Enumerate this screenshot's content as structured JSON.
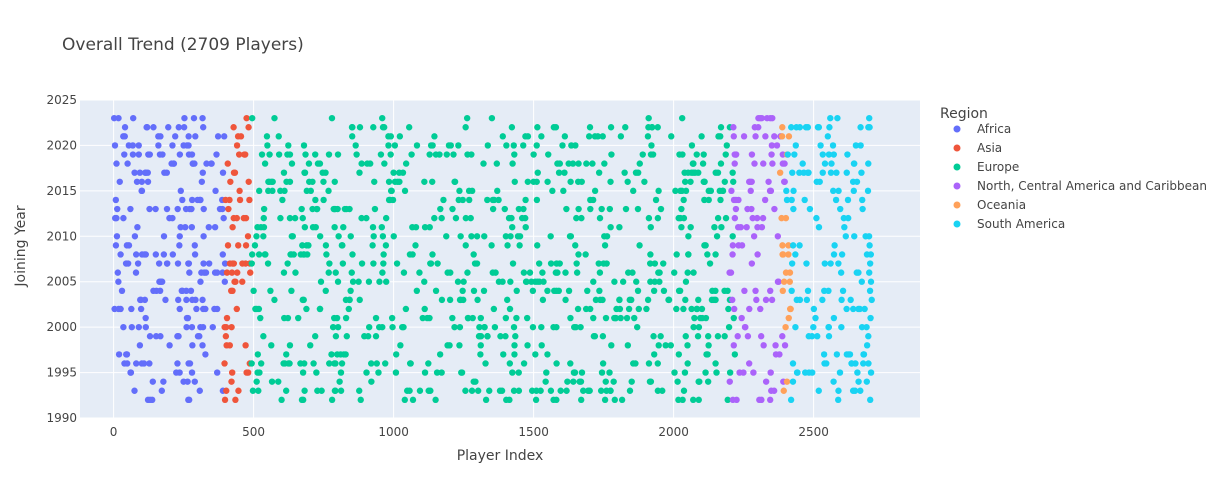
{
  "chart_data": {
    "type": "scatter",
    "title": "Overall Trend (2709 Players)",
    "xlabel": "Player Index",
    "ylabel": "Joining Year",
    "xlim": [
      -120,
      2880
    ],
    "ylim": [
      1990,
      2025
    ],
    "x_ticks": [
      0,
      500,
      1000,
      1500,
      2000,
      2500
    ],
    "y_ticks": [
      1990,
      1995,
      2000,
      2005,
      2010,
      2015,
      2020,
      2025
    ],
    "grid": true,
    "legend_title": "Region",
    "legend_position": "right",
    "series": [
      {
        "name": "Africa",
        "color": "#636efa",
        "x_range": [
          0,
          400
        ],
        "points": [
          [
            2,
            2023
          ],
          [
            5,
            2020
          ],
          [
            8,
            2014
          ],
          [
            12,
            2010
          ],
          [
            15,
            2006
          ],
          [
            18,
            2002
          ],
          [
            22,
            2016
          ],
          [
            25,
            2008
          ],
          [
            30,
            2004
          ],
          [
            35,
            2012
          ],
          [
            40,
            2021
          ],
          [
            45,
            1997
          ],
          [
            50,
            2018
          ],
          [
            55,
            2009
          ],
          [
            60,
            2013
          ],
          [
            65,
            2000
          ],
          [
            70,
            2023
          ],
          [
            75,
            2017
          ],
          [
            80,
            2006
          ],
          [
            85,
            2011
          ],
          [
            90,
            2019
          ],
          [
            95,
            2003
          ],
          [
            100,
            2015
          ],
          [
            110,
            2008
          ],
          [
            120,
            2022
          ],
          [
            130,
            1999
          ],
          [
            140,
            1994
          ],
          [
            150,
            2013
          ],
          [
            160,
            2020
          ],
          [
            170,
            2005
          ],
          [
            180,
            2010
          ],
          [
            190,
            2017
          ],
          [
            200,
            1998
          ],
          [
            210,
            2012
          ],
          [
            220,
            2021
          ],
          [
            230,
            2007
          ],
          [
            240,
            2015
          ],
          [
            250,
            1994
          ],
          [
            260,
            2003
          ],
          [
            270,
            1992
          ],
          [
            280,
            2019
          ],
          [
            290,
            2009
          ],
          [
            300,
            2014
          ],
          [
            310,
            2000
          ],
          [
            320,
            2022
          ],
          [
            330,
            2006
          ],
          [
            340,
            2011
          ],
          [
            350,
            2018
          ],
          [
            360,
            2002
          ],
          [
            370,
            1995
          ],
          [
            380,
            2013
          ],
          [
            390,
            2008
          ],
          [
            395,
            2021
          ]
        ]
      },
      {
        "name": "Asia",
        "color": "#ef553b",
        "x_range": [
          395,
          490
        ],
        "points": [
          [
            398,
            1992
          ],
          [
            402,
            2000
          ],
          [
            405,
            2006
          ],
          [
            410,
            2013
          ],
          [
            415,
            1998
          ],
          [
            420,
            2004
          ],
          [
            425,
            2011
          ],
          [
            430,
            2017
          ],
          [
            435,
            1992
          ],
          [
            440,
            2002
          ],
          [
            445,
            2009
          ],
          [
            450,
            2015
          ],
          [
            455,
            2021
          ],
          [
            460,
            2007
          ],
          [
            465,
            2012
          ],
          [
            470,
            2019
          ],
          [
            475,
            2023
          ],
          [
            480,
            2010
          ],
          [
            485,
            2014
          ],
          [
            488,
            2006
          ]
        ]
      },
      {
        "name": "Europe",
        "color": "#00cc96",
        "x_range": [
          490,
          2220
        ],
        "points": [
          [
            495,
            2023
          ],
          [
            520,
            2015
          ],
          [
            560,
            2004
          ],
          [
            600,
            1992
          ],
          [
            640,
            2010
          ],
          [
            680,
            2020
          ],
          [
            720,
            1999
          ],
          [
            760,
            2008
          ],
          [
            800,
            2013
          ],
          [
            840,
            2002
          ],
          [
            880,
            2022
          ],
          [
            920,
            1996
          ],
          [
            960,
            2006
          ],
          [
            1000,
            2017
          ],
          [
            1040,
            1992
          ],
          [
            1080,
            2011
          ],
          [
            1120,
            2001
          ],
          [
            1150,
            1992
          ],
          [
            1190,
            2019
          ],
          [
            1230,
            2005
          ],
          [
            1270,
            2014
          ],
          [
            1310,
            1997
          ],
          [
            1350,
            2009
          ],
          [
            1390,
            2021
          ],
          [
            1430,
            2000
          ],
          [
            1470,
            2012
          ],
          [
            1510,
            1993
          ],
          [
            1550,
            2016
          ],
          [
            1590,
            2004
          ],
          [
            1630,
            2010
          ],
          [
            1670,
            1992
          ],
          [
            1710,
            2018
          ],
          [
            1750,
            2007
          ],
          [
            1790,
            1992
          ],
          [
            1830,
            2013
          ],
          [
            1870,
            2000
          ],
          [
            1910,
            2022
          ],
          [
            1950,
            2006
          ],
          [
            1990,
            1998
          ],
          [
            2030,
            2015
          ],
          [
            2070,
            1992
          ],
          [
            2110,
            2009
          ],
          [
            2150,
            2003
          ],
          [
            2190,
            2020
          ],
          [
            2215,
            2001
          ]
        ]
      },
      {
        "name": "North, Central America and Caribbean",
        "color": "#ab63fa",
        "x_range": [
          2200,
          2400
        ],
        "points": [
          [
            2205,
            2006
          ],
          [
            2215,
            2021
          ],
          [
            2225,
            1992
          ],
          [
            2240,
            2011
          ],
          [
            2255,
            2000
          ],
          [
            2270,
            2016
          ],
          [
            2285,
            1995
          ],
          [
            2300,
            2008
          ],
          [
            2315,
            2023
          ],
          [
            2330,
            2003
          ],
          [
            2345,
            1992
          ],
          [
            2360,
            2013
          ],
          [
            2375,
            2005
          ],
          [
            2390,
            2019
          ],
          [
            2398,
            1998
          ]
        ]
      },
      {
        "name": "Oceania",
        "color": "#ffa15a",
        "x_range": [
          2380,
          2420
        ],
        "points": [
          [
            2390,
            2004
          ],
          [
            2400,
            2000
          ],
          [
            2405,
            1994
          ],
          [
            2410,
            2008
          ],
          [
            2415,
            2005
          ]
        ]
      },
      {
        "name": "South America",
        "color": "#19d3f3",
        "x_range": [
          2400,
          2709
        ],
        "points": [
          [
            2405,
            2014
          ],
          [
            2420,
            2022
          ],
          [
            2435,
            2000
          ],
          [
            2450,
            2009
          ],
          [
            2465,
            2017
          ],
          [
            2480,
            2004
          ],
          [
            2495,
            1995
          ],
          [
            2510,
            2012
          ],
          [
            2525,
            2020
          ],
          [
            2540,
            2007
          ],
          [
            2555,
            1999
          ],
          [
            2570,
            2015
          ],
          [
            2585,
            2023
          ],
          [
            2600,
            2003
          ],
          [
            2615,
            2010
          ],
          [
            2630,
            1997
          ],
          [
            2645,
            2018
          ],
          [
            2660,
            2006
          ],
          [
            2675,
            2013
          ],
          [
            2690,
            1994
          ],
          [
            2700,
            2022
          ],
          [
            2705,
            2005
          ]
        ]
      }
    ]
  }
}
